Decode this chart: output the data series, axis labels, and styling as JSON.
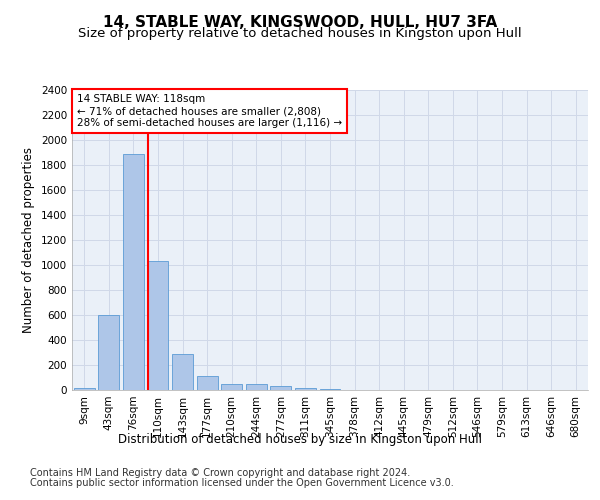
{
  "title": "14, STABLE WAY, KINGSWOOD, HULL, HU7 3FA",
  "subtitle": "Size of property relative to detached houses in Kingston upon Hull",
  "xlabel": "Distribution of detached houses by size in Kingston upon Hull",
  "ylabel": "Number of detached properties",
  "footer_line1": "Contains HM Land Registry data © Crown copyright and database right 2024.",
  "footer_line2": "Contains public sector information licensed under the Open Government Licence v3.0.",
  "categories": [
    "9sqm",
    "43sqm",
    "76sqm",
    "110sqm",
    "143sqm",
    "177sqm",
    "210sqm",
    "244sqm",
    "277sqm",
    "311sqm",
    "345sqm",
    "378sqm",
    "412sqm",
    "445sqm",
    "479sqm",
    "512sqm",
    "546sqm",
    "579sqm",
    "613sqm",
    "646sqm",
    "680sqm"
  ],
  "values": [
    20,
    600,
    1890,
    1030,
    285,
    115,
    50,
    45,
    30,
    20,
    5,
    3,
    2,
    2,
    1,
    1,
    0,
    0,
    0,
    0,
    0
  ],
  "bar_color": "#aec6e8",
  "bar_edge_color": "#5b9bd5",
  "vline_x_index": 3,
  "vline_color": "red",
  "annotation_text": "14 STABLE WAY: 118sqm\n← 71% of detached houses are smaller (2,808)\n28% of semi-detached houses are larger (1,116) →",
  "annotation_box_color": "white",
  "annotation_box_edge": "red",
  "ylim": [
    0,
    2400
  ],
  "yticks": [
    0,
    200,
    400,
    600,
    800,
    1000,
    1200,
    1400,
    1600,
    1800,
    2000,
    2200,
    2400
  ],
  "grid_color": "#d0d8e8",
  "bg_color": "#eaf0f8",
  "title_fontsize": 11,
  "subtitle_fontsize": 9.5,
  "axis_label_fontsize": 8.5,
  "tick_fontsize": 7.5,
  "footer_fontsize": 7.0,
  "annotation_fontsize": 7.5
}
